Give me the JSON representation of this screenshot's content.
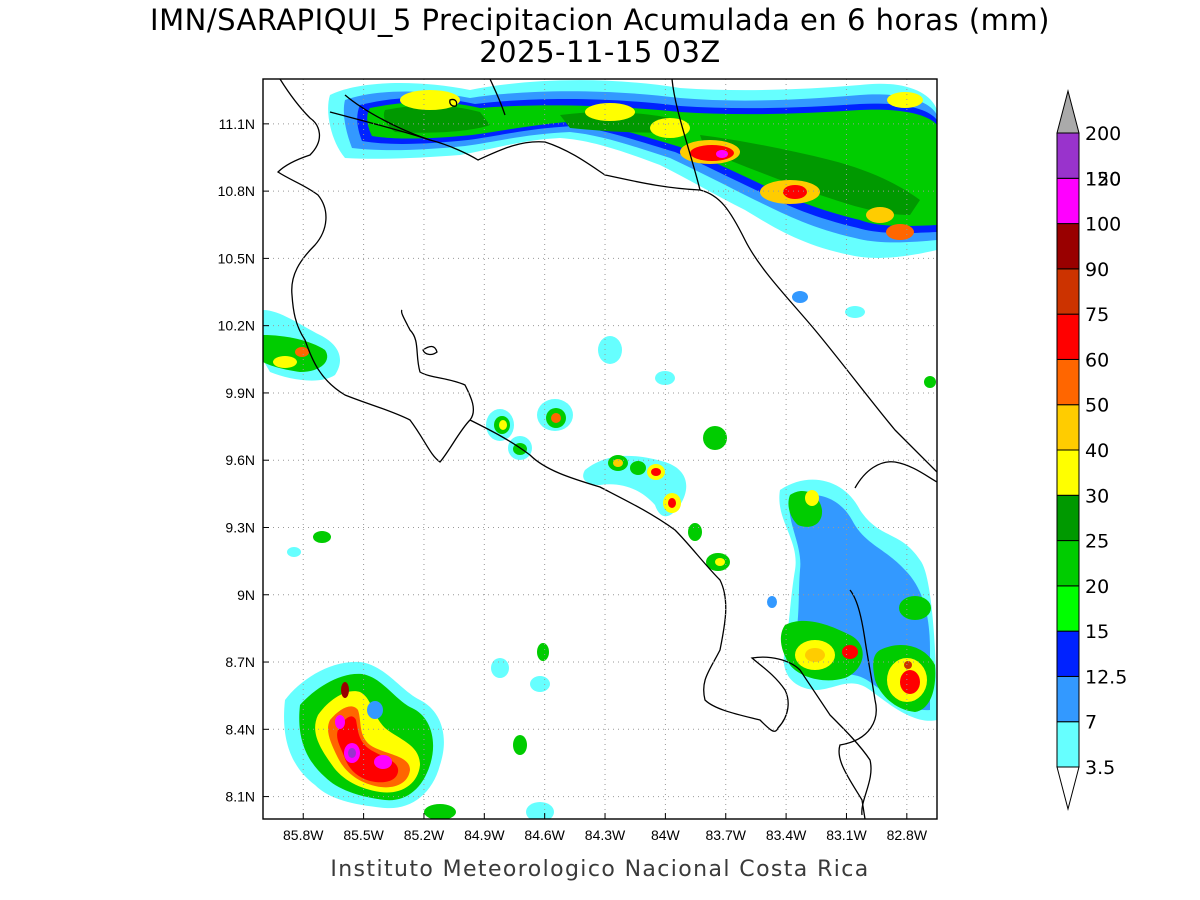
{
  "title": {
    "line1": "IMN/SARAPIQUI_5 Precipitacion Acumulada en 6 horas (mm)",
    "line2": "2025-11-15 03Z"
  },
  "credit": "Instituto Meteorologico Nacional Costa Rica",
  "map": {
    "lon_range": [
      -86.0,
      -82.65
    ],
    "lat_range": [
      8.0,
      11.3
    ],
    "lon_ticks": [
      {
        "value": -85.8,
        "label": "85.8W"
      },
      {
        "value": -85.5,
        "label": "85.5W"
      },
      {
        "value": -85.2,
        "label": "85.2W"
      },
      {
        "value": -84.9,
        "label": "84.9W"
      },
      {
        "value": -84.6,
        "label": "84.6W"
      },
      {
        "value": -84.3,
        "label": "84.3W"
      },
      {
        "value": -84.0,
        "label": "84W"
      },
      {
        "value": -83.7,
        "label": "83.7W"
      },
      {
        "value": -83.4,
        "label": "83.4W"
      },
      {
        "value": -83.1,
        "label": "83.1W"
      },
      {
        "value": -82.8,
        "label": "82.8W"
      }
    ],
    "lat_ticks": [
      {
        "value": 11.1,
        "label": "11.1N"
      },
      {
        "value": 10.8,
        "label": "10.8N"
      },
      {
        "value": 10.5,
        "label": "10.5N"
      },
      {
        "value": 10.2,
        "label": "10.2N"
      },
      {
        "value": 9.9,
        "label": "9.9N"
      },
      {
        "value": 9.6,
        "label": "9.6N"
      },
      {
        "value": 9.3,
        "label": "9.3N"
      },
      {
        "value": 9.0,
        "label": "9N"
      },
      {
        "value": 8.7,
        "label": "8.7N"
      },
      {
        "value": 8.4,
        "label": "8.4N"
      },
      {
        "value": 8.1,
        "label": "8.1N"
      }
    ],
    "gridlines": true
  },
  "colorbar": {
    "levels": [
      {
        "label": "3.5",
        "color": "#66ffff"
      },
      {
        "label": "7",
        "color": "#3399ff"
      },
      {
        "label": "12.5",
        "color": "#0022ff"
      },
      {
        "label": "15",
        "color": "#00ff00"
      },
      {
        "label": "20",
        "color": "#00cc00"
      },
      {
        "label": "25",
        "color": "#009900"
      },
      {
        "label": "30",
        "color": "#ffff00"
      },
      {
        "label": "40",
        "color": "#ffcc00"
      },
      {
        "label": "50",
        "color": "#ff6600"
      },
      {
        "label": "60",
        "color": "#ff0000"
      },
      {
        "label": "75",
        "color": "#cc3300"
      },
      {
        "label": "90",
        "color": "#990000"
      },
      {
        "label": "100",
        "color": "#ff00ff"
      },
      {
        "label": "120",
        "color": "#9933cc"
      },
      {
        "label": "150",
        "color": "#f2f2f2"
      },
      {
        "label": "200",
        "color": "#aaaaaa"
      }
    ]
  }
}
